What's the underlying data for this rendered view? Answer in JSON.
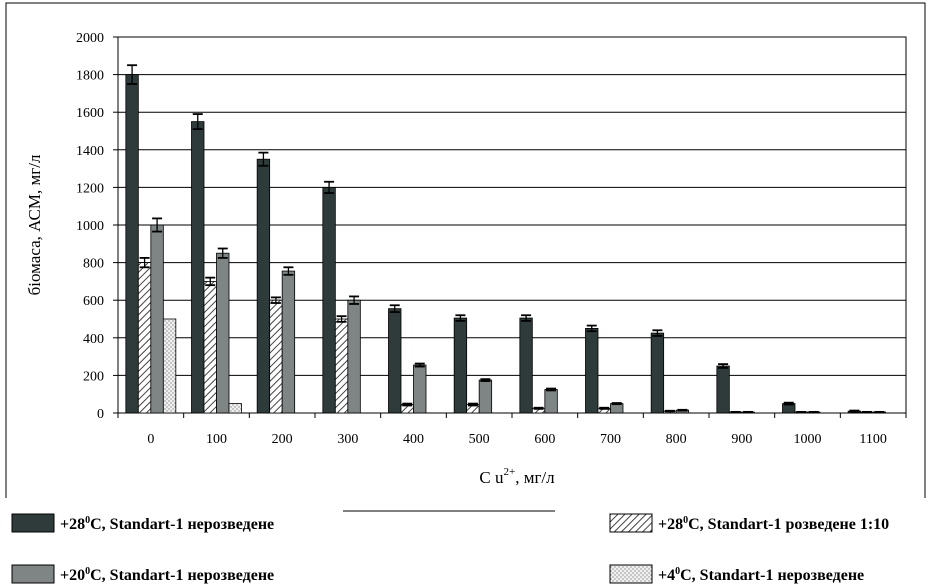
{
  "chart_data": {
    "type": "bar",
    "title": "",
    "xlabel": "C u",
    "xlabel_sup": "2+",
    "xlabel_unit": ", мг/л",
    "ylabel": "біомаса, АСМ, мг/л",
    "ylim": [
      0,
      2000
    ],
    "yticks": [
      0,
      200,
      400,
      600,
      800,
      1000,
      1200,
      1400,
      1600,
      1800,
      2000
    ],
    "grid": true,
    "legend_position": "bottom",
    "categories": [
      "0",
      "100",
      "200",
      "300",
      "400",
      "500",
      "600",
      "700",
      "800",
      "900",
      "1000",
      "1100"
    ],
    "series": [
      {
        "name": "+28⁰C, Standart-1 нерозведене",
        "color": "#2f3b3b",
        "pattern": "solid",
        "values": [
          1800,
          1550,
          1350,
          1200,
          555,
          505,
          505,
          450,
          425,
          250,
          50,
          10
        ],
        "errors": [
          50,
          40,
          35,
          30,
          18,
          15,
          15,
          15,
          15,
          10,
          5,
          3
        ]
      },
      {
        "name": "+28⁰C, Standart-1 розведене 1:10",
        "color": "#6f6f6f",
        "pattern": "hatched",
        "values": [
          800,
          700,
          600,
          500,
          45,
          45,
          25,
          25,
          10,
          5,
          5,
          5
        ],
        "errors": [
          25,
          20,
          15,
          15,
          5,
          5,
          3,
          3,
          2,
          1,
          1,
          1
        ]
      },
      {
        "name": "+20⁰C, Standart-1 нерозведене",
        "color": "#7f8585",
        "pattern": "solid",
        "values": [
          1000,
          850,
          755,
          600,
          255,
          175,
          125,
          50,
          15,
          5,
          5,
          5
        ],
        "errors": [
          35,
          25,
          20,
          20,
          8,
          5,
          5,
          3,
          2,
          1,
          1,
          1
        ]
      },
      {
        "name": "+4⁰C, Standart-1 нерозведене",
        "color": "#e2e2e2",
        "pattern": "dotted",
        "values": [
          500,
          50,
          0,
          0,
          0,
          0,
          0,
          0,
          0,
          0,
          0,
          0
        ],
        "errors": [
          0,
          0,
          0,
          0,
          0,
          0,
          0,
          0,
          0,
          0,
          0,
          0
        ]
      }
    ],
    "legend": [
      {
        "pre": "+28",
        "sup": "0",
        "post": "C, Standart-1 нерозведене"
      },
      {
        "pre": "+28",
        "sup": "0",
        "post": "C, Standart-1 розведене 1:10"
      },
      {
        "pre": "+20",
        "sup": "0",
        "post": "C, Standart-1 нерозведене"
      },
      {
        "pre": "+4",
        "sup": "0",
        "post": "C, Standart-1 нерозведене"
      }
    ]
  }
}
